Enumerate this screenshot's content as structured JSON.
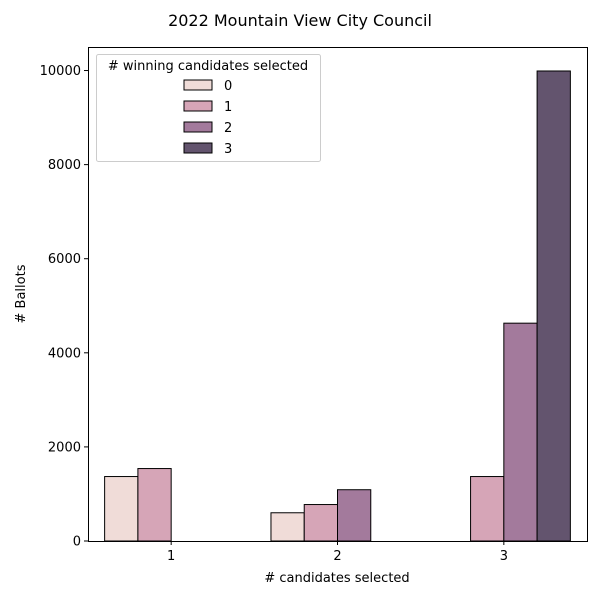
{
  "chart_data": {
    "type": "bar",
    "title": "2022 Mountain View City Council",
    "xlabel": "# candidates selected",
    "ylabel": "# Ballots",
    "categories": [
      "1",
      "2",
      "3"
    ],
    "ylim": [
      0,
      10500
    ],
    "yticks": [
      0,
      2000,
      4000,
      6000,
      8000,
      10000
    ],
    "grid": false,
    "legend": {
      "title": "# winning candidates selected",
      "placement": "top-left"
    },
    "series": [
      {
        "name": "0",
        "color": "#f0dcd8",
        "values": [
          1370,
          600,
          0
        ]
      },
      {
        "name": "1",
        "color": "#d6a5b7",
        "values": [
          1540,
          775,
          1370
        ]
      },
      {
        "name": "2",
        "color": "#a37a9c",
        "values": [
          0,
          1090,
          4630
        ]
      },
      {
        "name": "3",
        "color": "#63546e",
        "values": [
          0,
          0,
          9990
        ]
      }
    ]
  }
}
